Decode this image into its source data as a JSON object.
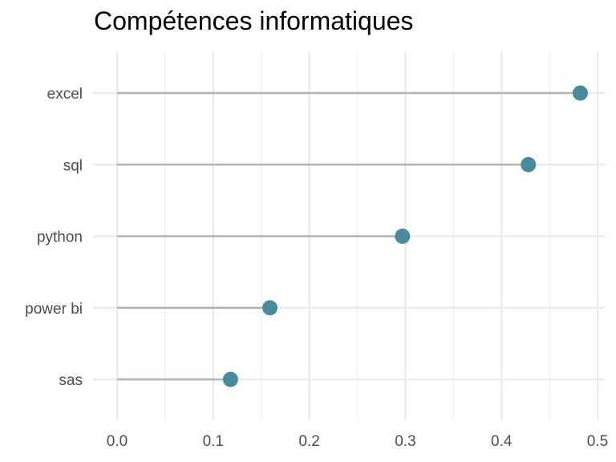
{
  "chart_data": {
    "type": "lollipop",
    "title": "Compétences informatiques",
    "xlabel": "",
    "ylabel": "",
    "categories": [
      "excel",
      "sql",
      "python",
      "power bi",
      "sas"
    ],
    "values": [
      0.482,
      0.428,
      0.297,
      0.159,
      0.118
    ],
    "xlim": [
      0.0,
      0.5
    ],
    "x_ticks": [
      "0.0",
      "0.1",
      "0.2",
      "0.3",
      "0.4",
      "0.5"
    ],
    "x_tick_values": [
      0.0,
      0.1,
      0.2,
      0.3,
      0.4,
      0.5
    ],
    "grid": true,
    "colors": {
      "point": "#4a8a9a",
      "stem": "#b3b3b3",
      "grid_major": "#ebebeb",
      "grid_minor": "#f2f2f2"
    }
  }
}
